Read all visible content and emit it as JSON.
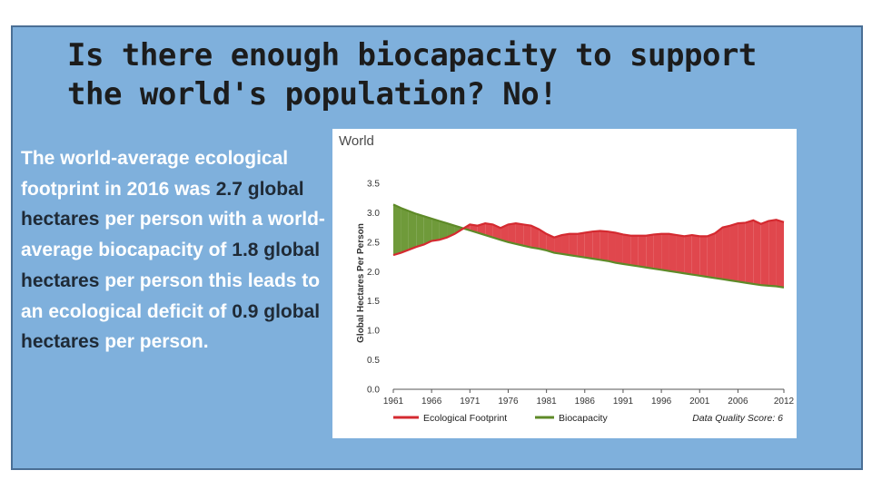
{
  "slide": {
    "title": "Is there enough biocapacity to support the world's population? No!",
    "body_segments": [
      {
        "text": "The world-average ecological footprint in 2016 was ",
        "highlight": false
      },
      {
        "text": "2.7 global hectares",
        "highlight": true
      },
      {
        "text": " per person with a world-average biocapacity of ",
        "highlight": false
      },
      {
        "text": "1.8 global hectares",
        "highlight": true
      },
      {
        "text": " per person this leads to an ecological deficit of ",
        "highlight": false
      },
      {
        "text": "0.9 global hectares",
        "highlight": true
      },
      {
        "text": " per person.",
        "highlight": false
      }
    ]
  },
  "colors": {
    "slide_background": "#7fb0dc",
    "slide_border": "#4a6f95",
    "title_text": "#1c1c1c",
    "body_text": "#ffffff",
    "highlight_text": "#1f2a36",
    "footprint_line": "#d42a30",
    "footprint_fill": "#e0474d",
    "biocapacity_line": "#5e8a28",
    "biocapacity_fill": "#6f9a3a"
  },
  "chart_data": {
    "type": "area",
    "title": "World",
    "ylabel": "Global Hectares Per Person",
    "ylim": [
      0,
      3.5
    ],
    "yticks": [
      "0.0",
      "0.5",
      "1.0",
      "1.5",
      "2.0",
      "2.5",
      "3.0",
      "3.5"
    ],
    "xlim": [
      1961,
      2012
    ],
    "xticks": [
      "1961",
      "1966",
      "1971",
      "1976",
      "1981",
      "1986",
      "1991",
      "1996",
      "2001",
      "2006",
      "2012"
    ],
    "x": [
      1961,
      1962,
      1963,
      1964,
      1965,
      1966,
      1967,
      1968,
      1969,
      1970,
      1971,
      1972,
      1973,
      1974,
      1975,
      1976,
      1977,
      1978,
      1979,
      1980,
      1981,
      1982,
      1983,
      1984,
      1985,
      1986,
      1987,
      1988,
      1989,
      1990,
      1991,
      1992,
      1993,
      1994,
      1995,
      1996,
      1997,
      1998,
      1999,
      2000,
      2001,
      2002,
      2003,
      2004,
      2005,
      2006,
      2007,
      2008,
      2009,
      2010,
      2011,
      2012
    ],
    "series": [
      {
        "name": "Ecological Footprint",
        "values": [
          2.28,
          2.32,
          2.37,
          2.42,
          2.46,
          2.52,
          2.54,
          2.58,
          2.64,
          2.72,
          2.8,
          2.78,
          2.82,
          2.8,
          2.74,
          2.8,
          2.82,
          2.8,
          2.78,
          2.72,
          2.64,
          2.58,
          2.62,
          2.64,
          2.64,
          2.66,
          2.68,
          2.69,
          2.68,
          2.66,
          2.63,
          2.61,
          2.61,
          2.61,
          2.63,
          2.64,
          2.64,
          2.62,
          2.6,
          2.62,
          2.6,
          2.6,
          2.65,
          2.75,
          2.78,
          2.82,
          2.83,
          2.87,
          2.81,
          2.86,
          2.88,
          2.84
        ]
      },
      {
        "name": "Biocapacity",
        "values": [
          3.14,
          3.08,
          3.03,
          2.98,
          2.94,
          2.9,
          2.86,
          2.82,
          2.78,
          2.74,
          2.7,
          2.66,
          2.62,
          2.58,
          2.54,
          2.5,
          2.47,
          2.44,
          2.41,
          2.39,
          2.36,
          2.32,
          2.3,
          2.28,
          2.26,
          2.24,
          2.22,
          2.2,
          2.18,
          2.15,
          2.13,
          2.11,
          2.09,
          2.07,
          2.05,
          2.03,
          2.01,
          1.99,
          1.97,
          1.95,
          1.93,
          1.91,
          1.89,
          1.87,
          1.85,
          1.83,
          1.81,
          1.79,
          1.77,
          1.76,
          1.75,
          1.73
        ]
      }
    ],
    "legend": {
      "placement": "bottom",
      "entries": [
        "Ecological Footprint",
        "Biocapacity"
      ],
      "note": "Data Quality Score: 6"
    },
    "grid": false
  }
}
